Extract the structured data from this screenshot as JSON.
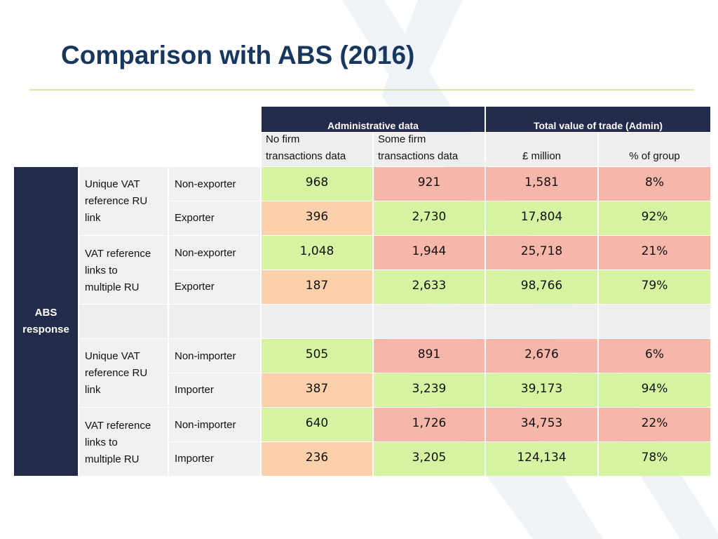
{
  "slide": {
    "title": "Comparison with ABS (2016)"
  },
  "colors": {
    "header_dark": "#232b4a",
    "green": "#d6f3a2",
    "red": "#f6b6aa",
    "orange": "#fdd0ac",
    "title": "#17375e"
  },
  "chart_data": {
    "type": "table",
    "group_headers": [
      "Administrative data",
      "Total value of trade (Admin)"
    ],
    "column_headers": [
      "No firm\ntransactions data",
      "Some firm\ntransactions data",
      "£ million",
      "% of group"
    ],
    "row_header": "ABS\nresponse",
    "groups": [
      {
        "label": "Unique VAT\nreference RU\nlink",
        "rows": [
          {
            "label": "Non-exporter",
            "values": [
              "968",
              "921",
              "1,581",
              "8%"
            ],
            "colors": [
              "green",
              "red",
              "red",
              "red"
            ]
          },
          {
            "label": "Exporter",
            "values": [
              "396",
              "2,730",
              "17,804",
              "92%"
            ],
            "colors": [
              "orange",
              "green",
              "green",
              "green"
            ]
          }
        ]
      },
      {
        "label": "VAT reference\nlinks to\nmultiple RU",
        "rows": [
          {
            "label": "Non-exporter",
            "values": [
              "1,048",
              "1,944",
              "25,718",
              "21%"
            ],
            "colors": [
              "green",
              "red",
              "red",
              "red"
            ]
          },
          {
            "label": "Exporter",
            "values": [
              "187",
              "2,633",
              "98,766",
              "79%"
            ],
            "colors": [
              "orange",
              "green",
              "green",
              "green"
            ]
          }
        ]
      },
      {
        "label": "Unique VAT\nreference RU\nlink",
        "rows": [
          {
            "label": "Non-importer",
            "values": [
              "505",
              "891",
              "2,676",
              "6%"
            ],
            "colors": [
              "green",
              "red",
              "red",
              "red"
            ]
          },
          {
            "label": "Importer",
            "values": [
              "387",
              "3,239",
              "39,173",
              "94%"
            ],
            "colors": [
              "orange",
              "green",
              "green",
              "green"
            ]
          }
        ]
      },
      {
        "label": "VAT reference\nlinks to\nmultiple RU",
        "rows": [
          {
            "label": "Non-importer",
            "values": [
              "640",
              "1,726",
              "34,753",
              "22%"
            ],
            "colors": [
              "green",
              "red",
              "red",
              "red"
            ]
          },
          {
            "label": "Importer",
            "values": [
              "236",
              "3,205",
              "124,134",
              "78%"
            ],
            "colors": [
              "orange",
              "green",
              "green",
              "green"
            ]
          }
        ]
      }
    ]
  }
}
